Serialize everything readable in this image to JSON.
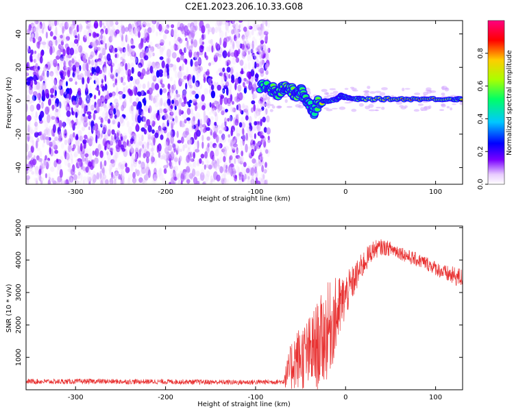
{
  "figure": {
    "title": "C2E1.2023.206.10.33.G08"
  },
  "chart_data": [
    {
      "type": "heatmap",
      "xlabel": "Height of straight line (km)",
      "ylabel": "Frequency (Hz)",
      "xlim": [
        -355,
        130
      ],
      "ylim": [
        -50,
        48
      ],
      "xticks": [
        -300,
        -200,
        -100,
        0,
        100
      ],
      "yticks": [
        -40,
        -20,
        0,
        20,
        40
      ],
      "colorbar": {
        "label": "Normalized spectral amplitude",
        "range": [
          0,
          1
        ],
        "ticks": [
          0.0,
          0.2,
          0.4,
          0.6,
          0.8
        ],
        "colormap": [
          "#ffffff",
          "#e8ccff",
          "#7a00ff",
          "#0000ff",
          "#00c8ff",
          "#00ff66",
          "#aaff00",
          "#ffcc00",
          "#ff0000",
          "#ff0080"
        ]
      },
      "noise_region": {
        "x_range": [
          -355,
          -85
        ],
        "y_range": [
          -50,
          48
        ],
        "amplitude_range": [
          0.0,
          0.25
        ]
      },
      "signal_trace": [
        {
          "x": -95,
          "y": 8,
          "amplitude": 0.5
        },
        {
          "x": -85,
          "y": 8,
          "amplitude": 0.55
        },
        {
          "x": -80,
          "y": 6,
          "amplitude": 0.6
        },
        {
          "x": -75,
          "y": 4,
          "amplitude": 0.55
        },
        {
          "x": -70,
          "y": 7,
          "amplitude": 0.6
        },
        {
          "x": -65,
          "y": 9,
          "amplitude": 0.65
        },
        {
          "x": -60,
          "y": 6,
          "amplitude": 0.6
        },
        {
          "x": -55,
          "y": 3,
          "amplitude": 0.6
        },
        {
          "x": -50,
          "y": 6,
          "amplitude": 0.55
        },
        {
          "x": -45,
          "y": 2,
          "amplitude": 0.55
        },
        {
          "x": -40,
          "y": -2,
          "amplitude": 0.5
        },
        {
          "x": -35,
          "y": -6,
          "amplitude": 0.45
        },
        {
          "x": -30,
          "y": -1,
          "amplitude": 0.6
        },
        {
          "x": -20,
          "y": 0,
          "amplitude": 0.85
        },
        {
          "x": -10,
          "y": 1,
          "amplitude": 0.7
        },
        {
          "x": -5,
          "y": 3,
          "amplitude": 0.6
        },
        {
          "x": 0,
          "y": 2,
          "amplitude": 0.85
        },
        {
          "x": 10,
          "y": 1,
          "amplitude": 0.7
        },
        {
          "x": 20,
          "y": 1,
          "amplitude": 0.75
        },
        {
          "x": 40,
          "y": 1,
          "amplitude": 0.8
        },
        {
          "x": 60,
          "y": 1,
          "amplitude": 0.85
        },
        {
          "x": 80,
          "y": 1,
          "amplitude": 0.9
        },
        {
          "x": 100,
          "y": 1,
          "amplitude": 0.85
        },
        {
          "x": 120,
          "y": 1,
          "amplitude": 0.8
        },
        {
          "x": 130,
          "y": 1,
          "amplitude": 0.8
        }
      ]
    },
    {
      "type": "line",
      "xlabel": "Height of straight line (km)",
      "ylabel": "SNR (10 * v/v)",
      "xlim": [
        -355,
        130
      ],
      "ylim": [
        0,
        5050
      ],
      "xticks": [
        -300,
        -200,
        -100,
        0,
        100
      ],
      "yticks": [
        1000,
        2000,
        3000,
        4000,
        5000
      ],
      "color": "#e83030",
      "series": [
        {
          "x": [
            -355,
            -320,
            -280,
            -240,
            -200,
            -160,
            -120,
            -90,
            -70,
            -62,
            -58,
            -50,
            -40,
            -30,
            -20,
            -10,
            0,
            10,
            20,
            30,
            40,
            50,
            60,
            70,
            80,
            90,
            100,
            110,
            120,
            130
          ],
          "y": [
            260,
            250,
            260,
            250,
            250,
            240,
            230,
            240,
            250,
            600,
            900,
            1000,
            1100,
            1400,
            1800,
            2300,
            2900,
            3400,
            3900,
            4300,
            4400,
            4350,
            4250,
            4100,
            4000,
            3900,
            3750,
            3600,
            3500,
            3450
          ],
          "noise_amplitude": [
            80,
            80,
            80,
            80,
            80,
            80,
            80,
            80,
            80,
            700,
            900,
            1000,
            1200,
            1400,
            1500,
            1200,
            700,
            500,
            400,
            300,
            250,
            230,
            220,
            220,
            220,
            220,
            220,
            250,
            300,
            300
          ]
        }
      ]
    }
  ]
}
